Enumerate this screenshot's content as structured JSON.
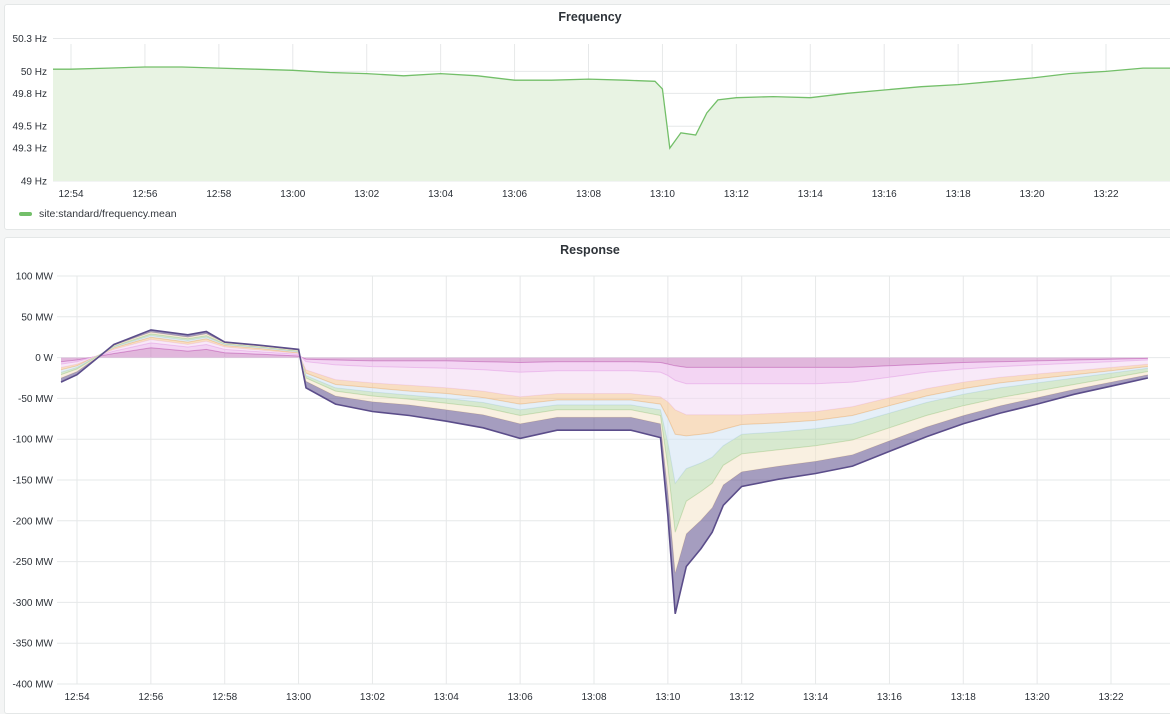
{
  "colors": {
    "frequency_line": "#73bf69",
    "frequency_fill": "#e8f3e3",
    "grid": "#e6e8e9",
    "axis_text": "#2c3138"
  },
  "panels": {
    "frequency": {
      "title": "Frequency"
    },
    "response": {
      "title": "Response"
    }
  },
  "chart_data": [
    {
      "type": "area",
      "title": "Frequency",
      "xlabel": "",
      "ylabel": "",
      "x_ticks": [
        "12:54",
        "12:56",
        "12:58",
        "13:00",
        "13:02",
        "13:04",
        "13:06",
        "13:08",
        "13:10",
        "13:12",
        "13:14",
        "13:16",
        "13:18",
        "13:20",
        "13:22"
      ],
      "y_ticks": [
        "50.3 Hz",
        "50 Hz",
        "49.8 Hz",
        "49.5 Hz",
        "49.3 Hz",
        "49 Hz"
      ],
      "ylim": [
        49,
        50.25
      ],
      "unit": "Hz",
      "grid": true,
      "legend_position": "bottom-left",
      "series": [
        {
          "name": "site:standard/frequency.mean",
          "color": "#73bf69",
          "x": [
            "12:53.5",
            "12:54",
            "12:55",
            "12:56",
            "12:57",
            "12:58",
            "12:59",
            "13:00",
            "13:01",
            "13:02",
            "13:03",
            "13:04",
            "13:05",
            "13:06",
            "13:07",
            "13:08",
            "13:09",
            "13:09.8",
            "13:10",
            "13:10.2",
            "13:10.5",
            "13:10.9",
            "13:11.2",
            "13:11.5",
            "13:12",
            "13:13",
            "13:14",
            "13:15",
            "13:16",
            "13:17",
            "13:18",
            "13:19",
            "13:20",
            "13:21",
            "13:22",
            "13:23"
          ],
          "values": [
            50.02,
            50.02,
            50.03,
            50.04,
            50.04,
            50.03,
            50.02,
            50.01,
            49.99,
            49.98,
            49.96,
            49.98,
            49.96,
            49.92,
            49.92,
            49.93,
            49.92,
            49.91,
            49.84,
            49.3,
            49.44,
            49.42,
            49.62,
            49.74,
            49.76,
            49.77,
            49.76,
            49.8,
            49.83,
            49.86,
            49.88,
            49.91,
            49.94,
            49.98,
            50.0,
            50.03
          ]
        }
      ]
    },
    {
      "type": "area",
      "title": "Response",
      "xlabel": "",
      "ylabel": "",
      "x_ticks": [
        "12:54",
        "12:56",
        "12:58",
        "13:00",
        "13:02",
        "13:04",
        "13:06",
        "13:08",
        "13:10",
        "13:12",
        "13:14",
        "13:16",
        "13:18",
        "13:20",
        "13:22"
      ],
      "y_ticks": [
        "100 MW",
        "50 MW",
        "0 W",
        "-50 MW",
        "-100 MW",
        "-150 MW",
        "-200 MW",
        "-250 MW",
        "-300 MW",
        "-350 MW",
        "-400 MW"
      ],
      "ylim": [
        -400,
        100
      ],
      "unit": "MW",
      "grid": true,
      "stacked": true,
      "x": [
        "12:53.5",
        "12:54",
        "12:55",
        "12:56",
        "12:57",
        "12:57.5",
        "12:58",
        "12:59",
        "13:00",
        "13:00.2",
        "13:01",
        "13:02",
        "13:03",
        "13:04",
        "13:05",
        "13:06",
        "13:07",
        "13:08",
        "13:09",
        "13:09.8",
        "13:10",
        "13:10.2",
        "13:10.5",
        "13:10.9",
        "13:11.2",
        "13:11.5",
        "13:12",
        "13:13",
        "13:14",
        "13:15",
        "13:16",
        "13:17",
        "13:18",
        "13:19",
        "13:20",
        "13:21",
        "13:22",
        "13:23"
      ],
      "series": [
        {
          "color": "#c97bbf",
          "values": [
            -5,
            -3,
            5,
            12,
            8,
            10,
            6,
            4,
            2,
            -2,
            -3,
            -4,
            -4,
            -4,
            -5,
            -6,
            -5,
            -5,
            -5,
            -6,
            -8,
            -10,
            -12,
            -12,
            -12,
            -12,
            -12,
            -12,
            -12,
            -12,
            -10,
            -8,
            -6,
            -5,
            -4,
            -3,
            -2,
            -1
          ]
        },
        {
          "color": "#e9b3ea",
          "values": [
            -3,
            -2,
            3,
            6,
            5,
            6,
            4,
            3,
            2,
            -3,
            -6,
            -7,
            -8,
            -9,
            -10,
            -12,
            -11,
            -11,
            -11,
            -12,
            -14,
            -18,
            -20,
            -20,
            -20,
            -20,
            -20,
            -20,
            -20,
            -18,
            -14,
            -10,
            -8,
            -6,
            -5,
            -4,
            -3,
            -2
          ]
        },
        {
          "color": "#f3d7f3",
          "values": [
            -4,
            -3,
            2,
            4,
            3,
            4,
            3,
            2,
            1,
            -10,
            -18,
            -20,
            -22,
            -24,
            -26,
            -30,
            -28,
            -28,
            -28,
            -30,
            -32,
            -36,
            -38,
            -38,
            -38,
            -38,
            -38,
            -36,
            -34,
            -30,
            -25,
            -20,
            -16,
            -13,
            -11,
            -9,
            -7,
            -5
          ]
        },
        {
          "color": "#f2c28f",
          "values": [
            -3,
            -2,
            2,
            3,
            3,
            3,
            2,
            2,
            1,
            -4,
            -6,
            -6,
            -7,
            -7,
            -8,
            -9,
            -8,
            -8,
            -8,
            -9,
            -20,
            -30,
            -26,
            -24,
            -22,
            -18,
            -12,
            -12,
            -11,
            -11,
            -10,
            -9,
            -8,
            -7,
            -6,
            -5,
            -4,
            -3
          ]
        },
        {
          "color": "#cfe2f3",
          "values": [
            -3,
            -2,
            1,
            2,
            2,
            2,
            1,
            1,
            1,
            -3,
            -4,
            -5,
            -5,
            -6,
            -6,
            -7,
            -6,
            -6,
            -6,
            -7,
            -30,
            -60,
            -40,
            -35,
            -30,
            -20,
            -12,
            -11,
            -10,
            -10,
            -9,
            -8,
            -7,
            -6,
            -5,
            -4,
            -3,
            -2
          ]
        },
        {
          "color": "#b6d7a8",
          "values": [
            -3,
            -2,
            1,
            2,
            2,
            2,
            1,
            1,
            1,
            -3,
            -4,
            -5,
            -5,
            -6,
            -6,
            -7,
            -6,
            -6,
            -6,
            -7,
            -30,
            -60,
            -40,
            -35,
            -32,
            -24,
            -24,
            -22,
            -21,
            -20,
            -18,
            -16,
            -14,
            -12,
            -10,
            -8,
            -6,
            -4
          ]
        },
        {
          "color": "#f4e4c8",
          "values": [
            -4,
            -3,
            1,
            2,
            2,
            2,
            1,
            1,
            1,
            -4,
            -6,
            -7,
            -7,
            -8,
            -9,
            -10,
            -9,
            -9,
            -9,
            -10,
            -30,
            -50,
            -40,
            -35,
            -30,
            -24,
            -22,
            -20,
            -19,
            -18,
            -16,
            -14,
            -12,
            -10,
            -8,
            -6,
            -5,
            -4
          ]
        },
        {
          "color": "#5b4d8a",
          "values": [
            -5,
            -4,
            1,
            3,
            3,
            3,
            1,
            1,
            1,
            -8,
            -10,
            -12,
            -13,
            -14,
            -16,
            -18,
            -16,
            -16,
            -16,
            -17,
            -30,
            -50,
            -40,
            -35,
            -30,
            -25,
            -18,
            -16,
            -15,
            -14,
            -13,
            -12,
            -10,
            -9,
            -8,
            -6,
            -5,
            -4
          ]
        }
      ]
    }
  ]
}
